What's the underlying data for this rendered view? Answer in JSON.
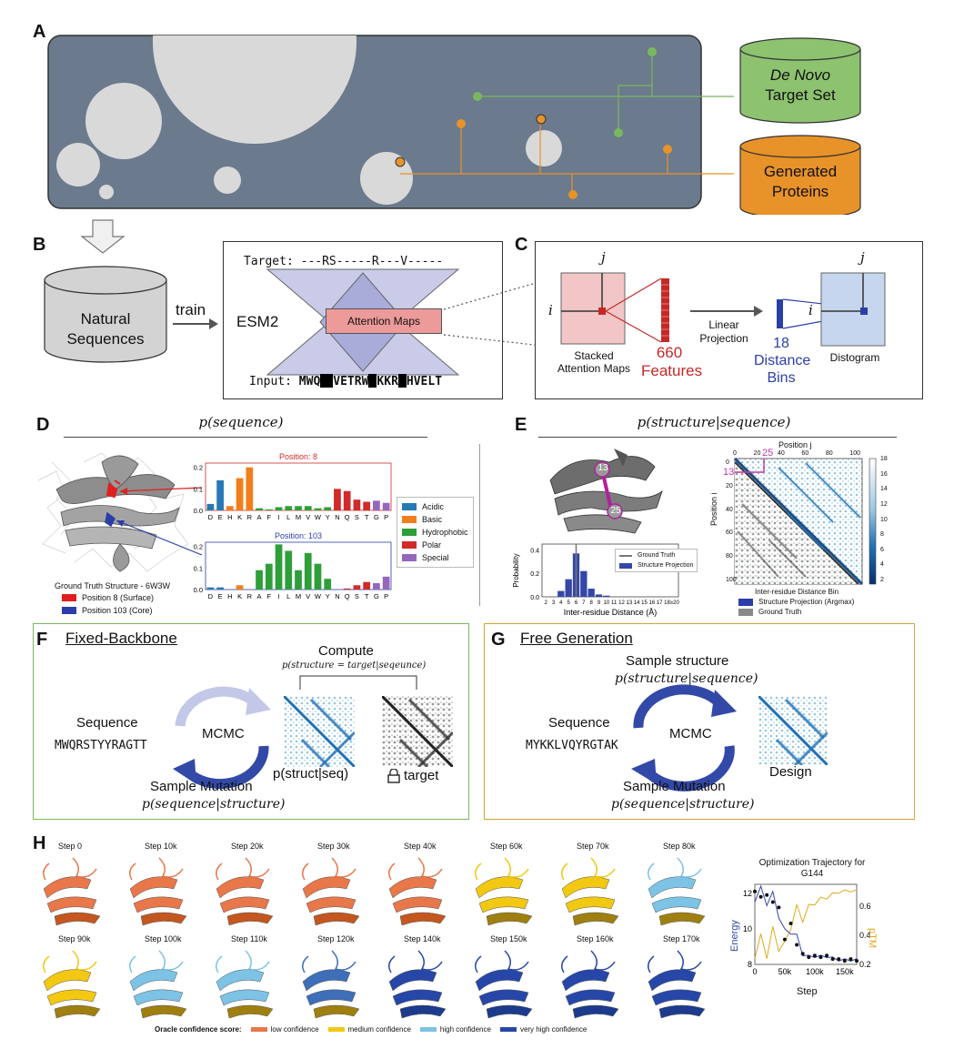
{
  "panels": [
    "A",
    "B",
    "C",
    "D",
    "E",
    "F",
    "G",
    "H"
  ],
  "A": {
    "cyl_target": {
      "line1": "De Novo",
      "line2": "Target Set",
      "color": "#8dc26f"
    },
    "cyl_generated": {
      "line1": "Generated",
      "line2": "Proteins",
      "color": "#e8922a"
    }
  },
  "B": {
    "cyl_natural": {
      "line1": "Natural",
      "line2": "Sequences"
    },
    "train": "train",
    "esm": "ESM2",
    "target_label": "Target:",
    "target_seq": "---RS-----R---V-----",
    "attention": "Attention Maps",
    "input_label": "Input:",
    "input_seq": {
      "p1": "MWQ",
      "p2": "VETRW",
      "p3": "KKR",
      "p4": "HVELT"
    }
  },
  "C": {
    "i": "i",
    "j": "j",
    "stacked": "Stacked Attention Maps",
    "features_num": "660",
    "features": "Features",
    "linear": "Linear Projection",
    "bins_num": "18",
    "bins1": "Distance",
    "bins2": "Bins",
    "distogram": "Distogram"
  },
  "D": {
    "title": "p(sequence)",
    "caption": "Ground Truth Structure - 6W3W",
    "legend_structure": [
      {
        "label": "Position 8 (Surface)",
        "color": "#e02020"
      },
      {
        "label": "Position 103 (Core)",
        "color": "#2b3ea8"
      }
    ],
    "categories_legend": [
      {
        "label": "Acidic",
        "color": "#2878b4"
      },
      {
        "label": "Basic",
        "color": "#f07f1b"
      },
      {
        "label": "Hydrophobic",
        "color": "#2e9e3a"
      },
      {
        "label": "Polar",
        "color": "#d12a2a"
      },
      {
        "label": "Special",
        "color": "#9467bd"
      }
    ]
  },
  "E": {
    "title": "p(structure|sequence)",
    "label13": "13",
    "label25": "25",
    "hist_legend": [
      "Ground Truth",
      "Structure Projection"
    ],
    "hist_xlabel": "Inter-residue Distance (Å)",
    "hist_ylabel": "Probability",
    "heat_xlabel_top": "Position j",
    "heat_ylabel": "Position i",
    "heat_xlabel_bottom": "Inter-residue Distance Bin",
    "heat_ticks": [
      "0",
      "20",
      "40",
      "60",
      "80",
      "100"
    ],
    "cbar_ticks": [
      "18",
      "16",
      "14",
      "12",
      "10",
      "8",
      "6",
      "4",
      "2"
    ],
    "heat_legend": [
      {
        "label": "Structure Projection (Argmax)",
        "color": "#2b3ea8"
      },
      {
        "label": "Ground Truth",
        "color": "#888888"
      }
    ]
  },
  "F": {
    "title": "Fixed-Backbone",
    "compute": "Compute",
    "compute_formula": "p(structure = target|seqeunce)",
    "sequence_label": "Sequence",
    "sequence": "MWQRSTYYRAGTT",
    "mcmc": "MCMC",
    "pstruct": "p(struct|seq)",
    "target": "target",
    "sample_mutation": "Sample Mutation",
    "formula": "p(sequence|structure)"
  },
  "G": {
    "title": "Free Generation",
    "sample_structure": "Sample structure",
    "formula_top": "p(structure|sequence)",
    "sequence_label": "Sequence",
    "sequence": "MYKKLVQYRGTAK",
    "mcmc": "MCMC",
    "design": "Design",
    "sample_mutation": "Sample Mutation",
    "formula": "p(sequence|structure)"
  },
  "H": {
    "steps_row1": [
      "Step 0",
      "Step 10k",
      "Step 20k",
      "Step 30k",
      "Step 40k",
      "Step 60k",
      "Step 70k",
      "Step 80k"
    ],
    "steps_row2": [
      "Step 90k",
      "Step 100k",
      "Step 110k",
      "Step 120k",
      "Step 140k",
      "Step 150k",
      "Step 160k",
      "Step 170k"
    ],
    "confidence_title": "Oracle confidence score:",
    "confidence": [
      {
        "label": "low confidence",
        "color": "#e8774a"
      },
      {
        "label": "medium confidence",
        "color": "#f2c811"
      },
      {
        "label": "high confidence",
        "color": "#7cc3e6"
      },
      {
        "label": "very high confidence",
        "color": "#2747a8"
      }
    ],
    "plot_title1": "Optimization Trajectory for",
    "plot_title2": "G144",
    "plot_xlabel": "Step",
    "plot_ylabel_left": "Energy",
    "plot_ylabel_right": "pTM",
    "xticks": [
      "0",
      "50k",
      "100k",
      "150k"
    ],
    "yticks_left": [
      "12",
      "10",
      "8"
    ],
    "yticks_right": [
      "0.6",
      "0.4",
      "0.2"
    ]
  },
  "chart_data": [
    {
      "type": "bar",
      "title": "Position: 8",
      "title_color": "#d12a2a",
      "categories": [
        "D",
        "E",
        "H",
        "K",
        "R",
        "A",
        "F",
        "I",
        "L",
        "M",
        "V",
        "W",
        "Y",
        "N",
        "Q",
        "S",
        "T",
        "G",
        "P"
      ],
      "values": [
        0.03,
        0.14,
        0.02,
        0.15,
        0.2,
        0.01,
        0.005,
        0.015,
        0.02,
        0.02,
        0.02,
        0.01,
        0.015,
        0.1,
        0.09,
        0.05,
        0.04,
        0.045,
        0.035
      ],
      "ylim": [
        0,
        0.22
      ],
      "yticks": [
        "0.2",
        "0.1",
        "0.0"
      ]
    },
    {
      "type": "bar",
      "title": "Position: 103",
      "title_color": "#2b3ea8",
      "categories": [
        "D",
        "E",
        "H",
        "K",
        "R",
        "A",
        "F",
        "I",
        "L",
        "M",
        "V",
        "W",
        "Y",
        "N",
        "Q",
        "S",
        "T",
        "G",
        "P"
      ],
      "values": [
        0.01,
        0.01,
        0.0,
        0.02,
        0.0,
        0.09,
        0.12,
        0.21,
        0.18,
        0.09,
        0.17,
        0.12,
        0.05,
        0.0,
        0.005,
        0.02,
        0.035,
        0.03,
        0.06
      ],
      "ylim": [
        0,
        0.22
      ],
      "yticks": [
        "0.2",
        "0.1",
        "0.0"
      ]
    },
    {
      "type": "bar",
      "xlabel": "Inter-residue Distance (Å)",
      "ylabel": "Probability",
      "categories": [
        "2",
        "3",
        "4",
        "5",
        "6",
        "7",
        "8",
        "9",
        "10",
        "11",
        "12",
        "13",
        "14",
        "15",
        "16",
        "17",
        "18",
        "≥20"
      ],
      "values": [
        0,
        0,
        0.05,
        0.15,
        0.37,
        0.22,
        0.07,
        0.02,
        0.01,
        0,
        0,
        0,
        0,
        0,
        0,
        0,
        0,
        0
      ],
      "ground_truth": "6",
      "yticks": [
        "0.4",
        "0.2",
        "0.0"
      ]
    },
    {
      "type": "line",
      "title": "Optimization Trajectory for G144",
      "x": [
        0,
        10,
        20,
        30,
        40,
        50,
        60,
        70,
        80,
        90,
        100,
        110,
        120,
        130,
        140,
        150,
        160,
        170
      ],
      "series": [
        {
          "name": "Energy",
          "color": "#3447a8",
          "values": [
            12.1,
            11.8,
            11.9,
            11.5,
            11.2,
            9.4,
            10.3,
            9.1,
            8.6,
            8.4,
            8.5,
            8.4,
            8.5,
            8.3,
            8.3,
            8.2,
            8.3,
            8.2
          ]
        },
        {
          "name": "pTM",
          "color": "#e0a81b",
          "values": [
            0.3,
            0.35,
            0.3,
            0.4,
            0.35,
            0.3,
            0.5,
            0.55,
            0.55,
            0.6,
            0.62,
            0.65,
            0.66,
            0.68,
            0.7,
            0.7,
            0.71,
            0.7
          ]
        }
      ],
      "xlabel": "Step",
      "ylim_left": [
        8,
        12.5
      ],
      "ylim_right": [
        0.2,
        0.75
      ]
    }
  ]
}
